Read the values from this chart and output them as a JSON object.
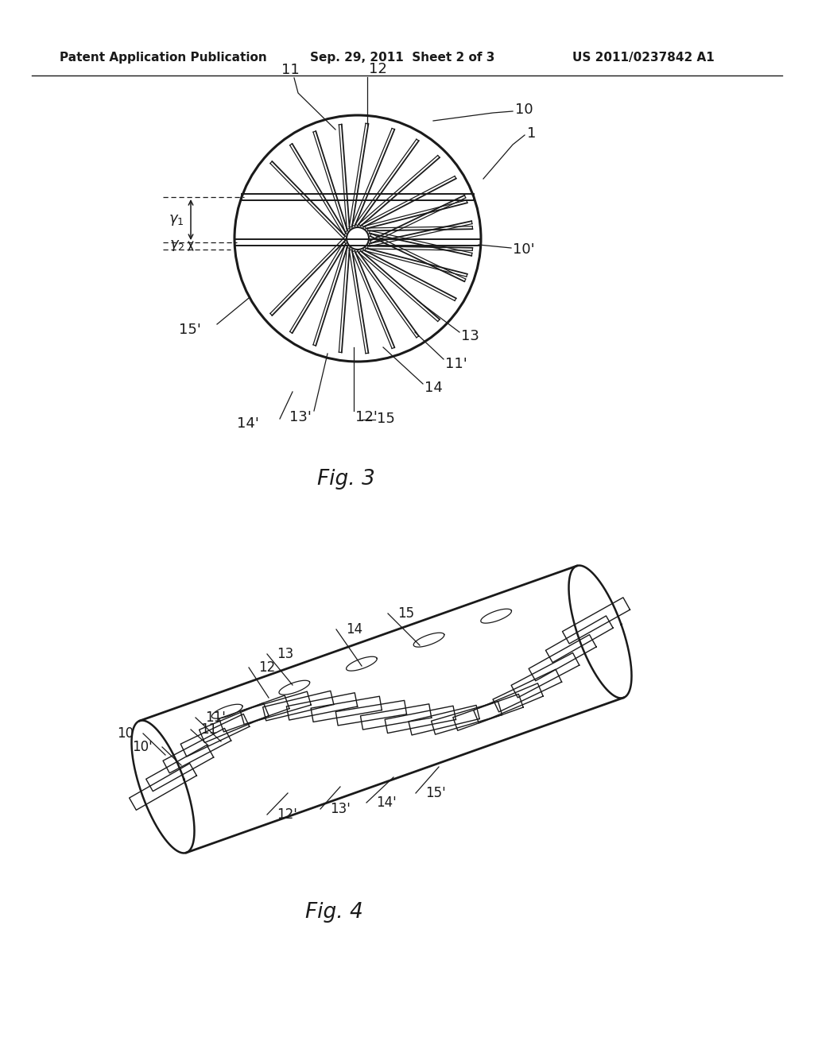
{
  "header_left": "Patent Application Publication",
  "header_center": "Sep. 29, 2011  Sheet 2 of 3",
  "header_right": "US 2011/0237842 A1",
  "fig3_label": "Fig. 3",
  "fig4_label": "Fig. 4",
  "line_color": "#1a1a1a",
  "text_color": "#1a1a1a"
}
